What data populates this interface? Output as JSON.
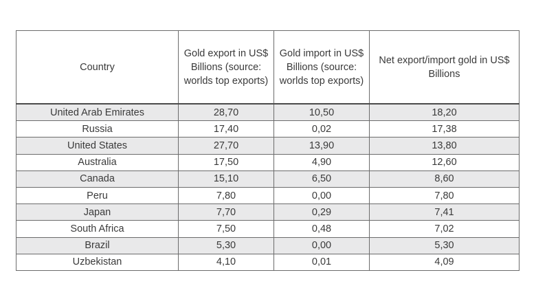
{
  "table": {
    "headers": [
      "Country",
      "Gold export in US$ Billions (source: worlds top exports)",
      "Gold import in US$ Billions (source: worlds top exports)",
      "Net export/import gold in US$ Billions"
    ],
    "rows": [
      [
        "United Arab Emirates",
        "28,70",
        "10,50",
        "18,20"
      ],
      [
        "Russia",
        "17,40",
        "0,02",
        "17,38"
      ],
      [
        "United States",
        "27,70",
        "13,90",
        "13,80"
      ],
      [
        "Australia",
        "17,50",
        "4,90",
        "12,60"
      ],
      [
        "Canada",
        "15,10",
        "6,50",
        "8,60"
      ],
      [
        "Peru",
        "7,80",
        "0,00",
        "7,80"
      ],
      [
        "Japan",
        "7,70",
        "0,29",
        "7,41"
      ],
      [
        "South Africa",
        "7,50",
        "0,48",
        "7,02"
      ],
      [
        "Brazil",
        "5,30",
        "0,00",
        "5,30"
      ],
      [
        "Uzbekistan",
        "4,10",
        "0,01",
        "4,09"
      ]
    ]
  }
}
